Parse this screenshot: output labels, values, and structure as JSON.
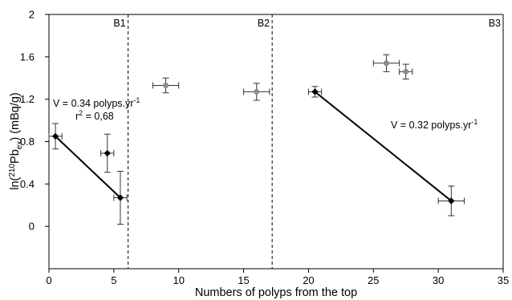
{
  "chart_data": {
    "type": "scatter",
    "xlabel": "Numbers of polyps from the top",
    "ylabel": {
      "prefix": "ln(",
      "sup": "210",
      "main": "Pb",
      "sub": "ex",
      "suffix": ") (mBq/g)"
    },
    "xlim": [
      0,
      35
    ],
    "ylim": [
      -0.4,
      2
    ],
    "xticks": [
      "0",
      "5",
      "10",
      "15",
      "20",
      "25",
      "30",
      "35"
    ],
    "yticks": [
      "0",
      "0.4",
      "0.8",
      "1.2",
      "1.6",
      "2"
    ],
    "boundaries": [
      {
        "x": 6.1,
        "label": "B1"
      },
      {
        "x": 17.2,
        "label": "B2"
      },
      {
        "x": 35,
        "label": "B3"
      }
    ],
    "series": [
      {
        "color": "#000000",
        "points": [
          {
            "x": 0.5,
            "y": 0.85,
            "xerr": 0.5,
            "yerr": 0.12
          },
          {
            "x": 4.5,
            "y": 0.69,
            "xerr": 0.5,
            "yerr": 0.18
          },
          {
            "x": 5.5,
            "y": 0.27,
            "xerr": 0.5,
            "yerr": 0.25
          },
          {
            "x": 20.5,
            "y": 1.27,
            "xerr": 0.5,
            "yerr": 0.05
          },
          {
            "x": 31.0,
            "y": 0.24,
            "xerr": 1.0,
            "yerr": 0.14
          }
        ]
      },
      {
        "color": "#8c8c8c",
        "points": [
          {
            "x": 9.0,
            "y": 1.33,
            "xerr": 1.0,
            "yerr": 0.07
          },
          {
            "x": 16.0,
            "y": 1.27,
            "xerr": 1.0,
            "yerr": 0.08
          },
          {
            "x": 26.0,
            "y": 1.54,
            "xerr": 1.0,
            "yerr": 0.08
          },
          {
            "x": 27.5,
            "y": 1.46,
            "xerr": 0.5,
            "yerr": 0.07
          }
        ]
      }
    ],
    "trendlines": [
      {
        "x1": 0.5,
        "y1": 0.85,
        "x2": 5.5,
        "y2": 0.27
      },
      {
        "x1": 20.5,
        "y1": 1.27,
        "x2": 31.0,
        "y2": 0.24
      }
    ],
    "annotations": {
      "left_rate": {
        "prefix": "V = 0.34 polyps.yr",
        "sup": "-1"
      },
      "left_r2": {
        "prefix": "r",
        "sup": "2",
        "suffix": " = 0,68"
      },
      "right_rate": {
        "prefix": "V = 0.32 polyps.yr",
        "sup": "-1"
      }
    },
    "grid": false,
    "legend": "none"
  }
}
